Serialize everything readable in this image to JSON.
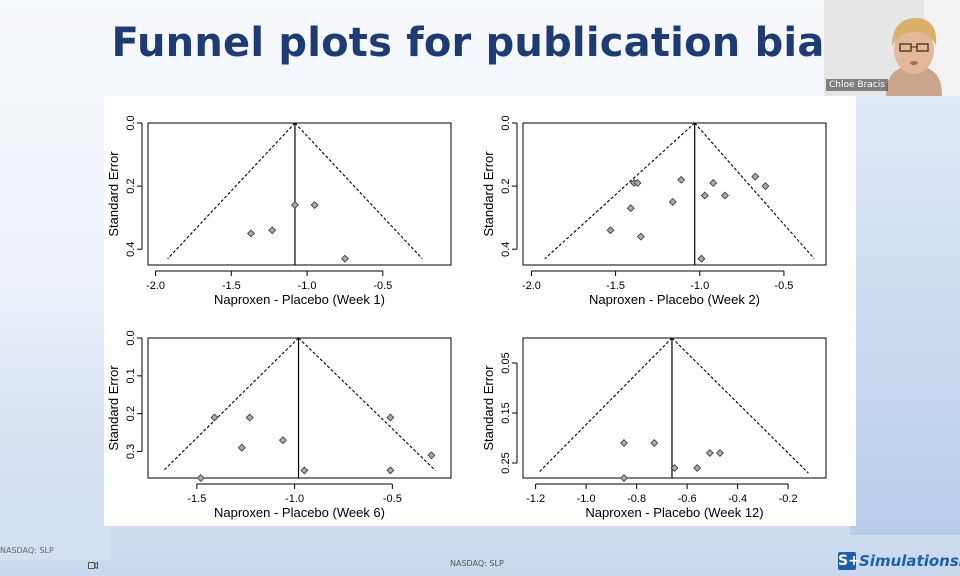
{
  "slide": {
    "title": "Funnel plots for publication bias"
  },
  "webcam": {
    "name": "Chloe Bracis"
  },
  "footer": {
    "ticker": "NASDAQ: SLP",
    "side_ticker": "NASDAQ: SLP",
    "brand_mark": "S+",
    "brand_name": "SimulationsP"
  },
  "colors": {
    "title": "#1f3b73",
    "point_fill": "#a9a9a9",
    "brand": "#1f5fa8"
  },
  "chart_data": [
    {
      "type": "scatter",
      "title": "",
      "xlabel": "Naproxen - Placebo (Week 1)",
      "ylabel": "Standard Error",
      "xlim": [
        -2.05,
        -0.05
      ],
      "ylim": [
        0.0,
        0.45
      ],
      "y_inverted": true,
      "xticks": [
        -2.0,
        -1.5,
        -1.0,
        -0.5
      ],
      "xtick_labels": [
        "-2.0",
        "-1.5",
        "-1.0",
        "-0.5"
      ],
      "yticks": [
        0.0,
        0.2,
        0.4
      ],
      "ytick_labels": [
        "0.0",
        "0.2",
        "0.4"
      ],
      "center": -1.08,
      "funnel_bottom_se": 0.43,
      "funnel_bottom_x": [
        -1.92,
        -0.24
      ],
      "points": [
        {
          "x": -1.37,
          "y": 0.35
        },
        {
          "x": -1.23,
          "y": 0.34
        },
        {
          "x": -1.08,
          "y": 0.26
        },
        {
          "x": -0.95,
          "y": 0.26
        },
        {
          "x": -0.75,
          "y": 0.43
        }
      ]
    },
    {
      "type": "scatter",
      "title": "",
      "xlabel": "Naproxen - Placebo (Week 2)",
      "ylabel": "Standard Error",
      "xlim": [
        -2.05,
        -0.25
      ],
      "ylim": [
        0.0,
        0.45
      ],
      "y_inverted": true,
      "xticks": [
        -2.0,
        -1.5,
        -1.0,
        -0.5
      ],
      "xtick_labels": [
        "-2.0",
        "-1.5",
        "-1.0",
        "-0.5"
      ],
      "yticks": [
        0.0,
        0.2,
        0.4
      ],
      "ytick_labels": [
        "0.0",
        "0.2",
        "0.4"
      ],
      "center": -1.03,
      "funnel_bottom_se": 0.43,
      "funnel_bottom_x": [
        -1.92,
        -0.32
      ],
      "points": [
        {
          "x": -1.53,
          "y": 0.34
        },
        {
          "x": -1.41,
          "y": 0.27
        },
        {
          "x": -1.39,
          "y": 0.19
        },
        {
          "x": -1.37,
          "y": 0.19
        },
        {
          "x": -1.35,
          "y": 0.36
        },
        {
          "x": -1.16,
          "y": 0.25
        },
        {
          "x": -1.11,
          "y": 0.18
        },
        {
          "x": -0.97,
          "y": 0.23
        },
        {
          "x": -0.92,
          "y": 0.19
        },
        {
          "x": -0.85,
          "y": 0.23
        },
        {
          "x": -0.67,
          "y": 0.17
        },
        {
          "x": -0.61,
          "y": 0.2
        },
        {
          "x": -0.99,
          "y": 0.43
        }
      ]
    },
    {
      "type": "scatter",
      "title": "",
      "xlabel": "Naproxen - Placebo (Week 6)",
      "ylabel": "Standard Error",
      "xlim": [
        -1.75,
        -0.2
      ],
      "ylim": [
        0.0,
        0.37
      ],
      "y_inverted": true,
      "xticks": [
        -1.5,
        -1.0,
        -0.5
      ],
      "xtick_labels": [
        "-1.5",
        "-1.0",
        "-0.5"
      ],
      "yticks": [
        0.0,
        0.1,
        0.2,
        0.3
      ],
      "ytick_labels": [
        "0.0",
        "0.1",
        "0.2",
        "0.3"
      ],
      "center": -0.98,
      "funnel_bottom_se": 0.35,
      "funnel_bottom_x": [
        -1.67,
        -0.28
      ],
      "points": [
        {
          "x": -1.48,
          "y": 0.37
        },
        {
          "x": -1.41,
          "y": 0.21
        },
        {
          "x": -1.27,
          "y": 0.29
        },
        {
          "x": -1.23,
          "y": 0.21
        },
        {
          "x": -1.06,
          "y": 0.27
        },
        {
          "x": -0.95,
          "y": 0.35
        },
        {
          "x": -0.51,
          "y": 0.21
        },
        {
          "x": -0.51,
          "y": 0.35
        },
        {
          "x": -0.3,
          "y": 0.31
        }
      ]
    },
    {
      "type": "scatter",
      "title": "",
      "xlabel": "Naproxen - Placebo (Week 12)",
      "ylabel": "Standard Error",
      "xlim": [
        -1.25,
        -0.05
      ],
      "ylim": [
        0.0,
        0.28
      ],
      "y_inverted": true,
      "xticks": [
        -1.2,
        -1.0,
        -0.8,
        -0.6,
        -0.4,
        -0.2
      ],
      "xtick_labels": [
        "-1.2",
        "-1.0",
        "-0.8",
        "-0.6",
        "-0.4",
        "-0.2"
      ],
      "yticks": [
        0.05,
        0.15,
        0.25
      ],
      "ytick_labels": [
        "0.05",
        "0.15",
        "0.25"
      ],
      "center": -0.66,
      "funnel_bottom_se": 0.27,
      "funnel_bottom_x": [
        -1.19,
        -0.12
      ],
      "points": [
        {
          "x": -0.85,
          "y": 0.28
        },
        {
          "x": -0.85,
          "y": 0.21
        },
        {
          "x": -0.73,
          "y": 0.21
        },
        {
          "x": -0.65,
          "y": 0.26
        },
        {
          "x": -0.56,
          "y": 0.26
        },
        {
          "x": -0.51,
          "y": 0.23
        },
        {
          "x": -0.47,
          "y": 0.23
        }
      ]
    }
  ]
}
